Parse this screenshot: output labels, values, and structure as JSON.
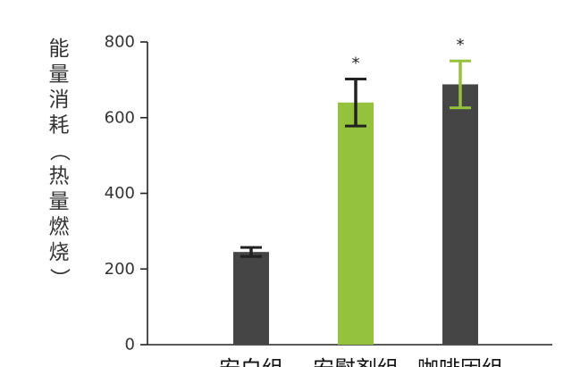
{
  "chart_data": {
    "type": "bar",
    "ylabel": "能量消耗（热量燃烧）",
    "ylabel_chars": [
      "能",
      "量",
      "消",
      "耗",
      "（",
      "热",
      "量",
      "燃",
      "烧",
      "）"
    ],
    "ylim": [
      0,
      800
    ],
    "yticks": [
      0,
      200,
      400,
      600,
      800
    ],
    "categories": [
      "安白组",
      "安慰剂组",
      "咖啡因组"
    ],
    "values": [
      245,
      640,
      688
    ],
    "errors": [
      12,
      62,
      62
    ],
    "annotations": [
      "",
      "*",
      "*"
    ],
    "colors": {
      "bars": [
        "#454545",
        "#95c23d",
        "#454545"
      ],
      "errorbars": [
        "#222222",
        "#222222",
        "#95c23d"
      ],
      "axis": "#222222"
    },
    "grid": false,
    "legend": "none"
  }
}
